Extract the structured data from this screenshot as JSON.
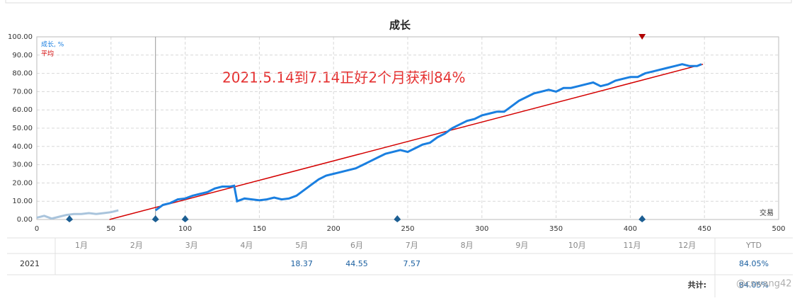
{
  "chart_data": {
    "type": "line",
    "title": "成长",
    "annotation": "2021.5.14到7.14正好2个月获利84%",
    "x_label": "交易",
    "xlim": [
      0,
      500
    ],
    "xticks": [
      0,
      50,
      100,
      150,
      200,
      250,
      300,
      350,
      400,
      450,
      500
    ],
    "ylim": [
      0,
      100
    ],
    "yticks": [
      {
        "value": 0,
        "label": "0.00"
      },
      {
        "value": 10,
        "label": "10.00"
      },
      {
        "value": 20,
        "label": "20.00"
      },
      {
        "value": 30,
        "label": "30.00"
      },
      {
        "value": 40,
        "label": "40.00"
      },
      {
        "value": 50,
        "label": "50.00"
      },
      {
        "value": 60,
        "label": "60.00"
      },
      {
        "value": 70,
        "label": "70.00"
      },
      {
        "value": 80,
        "label": "80.00"
      },
      {
        "value": 90,
        "label": "90.00"
      },
      {
        "value": 100,
        "label": "100.00"
      }
    ],
    "grid": true,
    "legend": "upper left",
    "start_line_x": 80,
    "bottom_markers_x": [
      22,
      80,
      100,
      243,
      408
    ],
    "top_marker_x": 408,
    "series": [
      {
        "name": "成长, %",
        "color": "#1a7fe0",
        "x": [
          80,
          85,
          90,
          95,
          100,
          105,
          110,
          115,
          120,
          125,
          130,
          133,
          135,
          140,
          145,
          150,
          155,
          160,
          165,
          170,
          175,
          180,
          185,
          190,
          195,
          200,
          205,
          210,
          215,
          220,
          225,
          230,
          235,
          240,
          245,
          250,
          255,
          260,
          265,
          270,
          275,
          280,
          285,
          290,
          295,
          300,
          305,
          310,
          315,
          320,
          325,
          330,
          335,
          340,
          345,
          350,
          355,
          360,
          365,
          370,
          375,
          380,
          385,
          390,
          395,
          400,
          405,
          410,
          415,
          420,
          425,
          430,
          435,
          440,
          445,
          448
        ],
        "values": [
          5,
          8,
          9,
          11,
          11.5,
          13,
          14,
          15,
          17,
          18,
          18,
          18.5,
          10,
          11.5,
          11,
          10.5,
          11,
          12,
          11,
          11.5,
          13,
          16,
          19,
          22,
          24,
          25,
          26,
          27,
          28,
          30,
          32,
          34,
          36,
          37,
          38,
          37,
          39,
          41,
          42,
          45,
          47,
          50,
          52,
          54,
          55,
          57,
          58,
          59,
          59,
          62,
          65,
          67,
          69,
          70,
          71,
          70,
          72,
          72,
          73,
          74,
          75,
          73,
          74,
          76,
          77,
          78,
          78,
          80,
          81,
          82,
          83,
          84,
          85,
          84,
          84,
          85
        ]
      },
      {
        "name": "平均",
        "color": "#d40000",
        "x": [
          49,
          449
        ],
        "values": [
          0,
          85
        ]
      },
      {
        "color": "#a9c4dc",
        "x": [
          0,
          5,
          10,
          15,
          20,
          25,
          30,
          35,
          40,
          45,
          50,
          55
        ],
        "values": [
          1,
          2,
          0.5,
          1.5,
          2.5,
          3,
          3,
          3.5,
          3,
          3.5,
          4,
          5
        ]
      }
    ]
  },
  "table": {
    "months": [
      "1月",
      "2月",
      "3月",
      "4月",
      "5月",
      "6月",
      "7月",
      "8月",
      "9月",
      "10月",
      "11月",
      "12月"
    ],
    "ytd_header": "YTD",
    "rows": [
      {
        "year": "2021",
        "values": [
          null,
          null,
          null,
          null,
          "18.37",
          "44.55",
          "7.57",
          null,
          null,
          null,
          null,
          null
        ],
        "ytd": "84.05%"
      }
    ],
    "total_label": "共计:",
    "total": "84.05%"
  },
  "watermark": "@cswang42"
}
